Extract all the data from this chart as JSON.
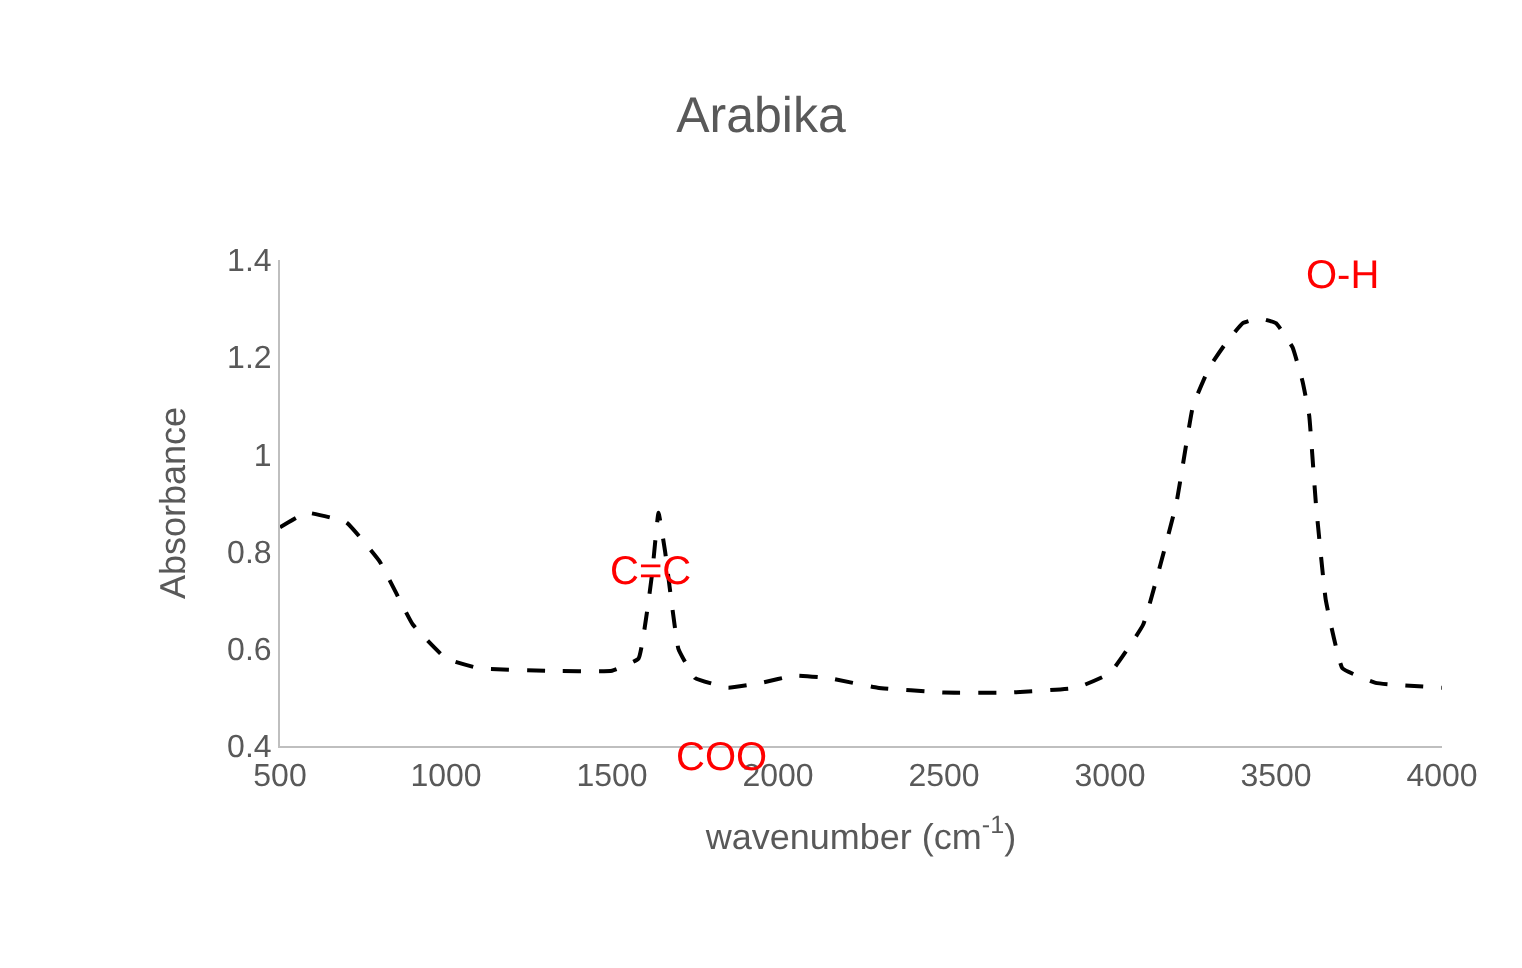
{
  "chart_data": {
    "type": "line",
    "title": "Arabika",
    "xlabel": "wavenumber (cm$^{-1}$)",
    "ylabel": "Absorbance",
    "x": [
      500,
      580,
      700,
      800,
      900,
      1000,
      1100,
      1300,
      1500,
      1580,
      1620,
      1640,
      1660,
      1700,
      1750,
      1850,
      1950,
      2050,
      2150,
      2300,
      2500,
      2700,
      2900,
      3000,
      3100,
      3200,
      3250,
      3300,
      3350,
      3400,
      3450,
      3500,
      3550,
      3580,
      3600,
      3620,
      3650,
      3700,
      3800,
      4000
    ],
    "series": [
      {
        "color": "#000000",
        "values": [
          0.85,
          0.88,
          0.86,
          0.78,
          0.65,
          0.58,
          0.56,
          0.555,
          0.555,
          0.58,
          0.75,
          0.88,
          0.8,
          0.6,
          0.54,
          0.52,
          0.53,
          0.545,
          0.54,
          0.52,
          0.51,
          0.51,
          0.52,
          0.55,
          0.65,
          0.9,
          1.1,
          1.18,
          1.23,
          1.27,
          1.28,
          1.27,
          1.22,
          1.15,
          1.08,
          0.9,
          0.7,
          0.56,
          0.53,
          0.52
        ]
      }
    ],
    "xlim": [
      500,
      4000
    ],
    "xticks": [
      500,
      1000,
      1500,
      2000,
      2500,
      3000,
      3500,
      4000
    ],
    "ylim": [
      0.4,
      1.4
    ],
    "yticks": [
      0.4,
      0.6,
      0.8,
      {
        "value": 1,
        "label": "1"
      },
      1.2,
      1.4
    ],
    "annotations": [
      "C=C",
      "COO",
      "O-H"
    ],
    "line_style": "dashed",
    "marker": "none"
  }
}
